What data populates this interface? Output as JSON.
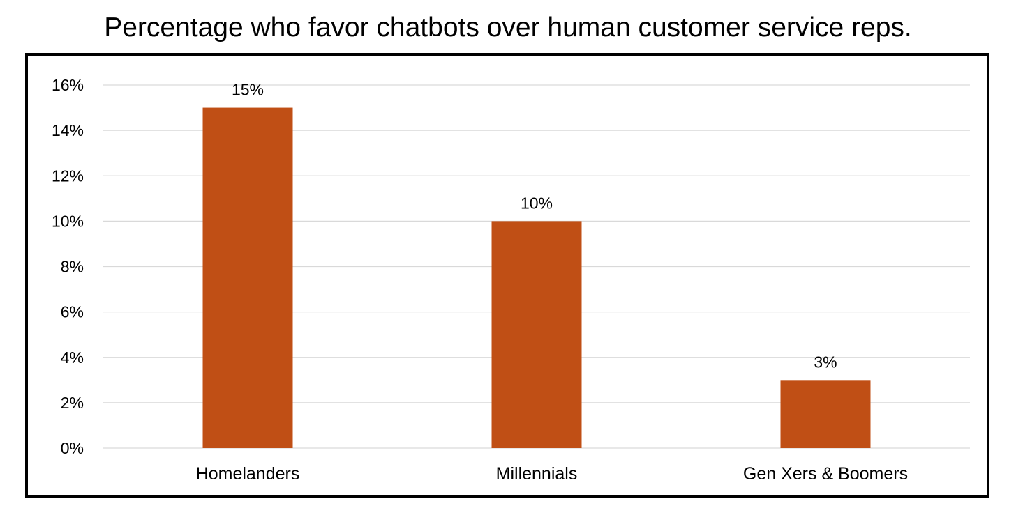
{
  "chart_data": {
    "type": "bar",
    "title": "Percentage who favor chatbots over human customer service reps.",
    "categories": [
      "Homelanders",
      "Millennials",
      "Gen Xers & Boomers"
    ],
    "values": [
      15,
      10,
      3
    ],
    "data_labels": [
      "15%",
      "10%",
      "3%"
    ],
    "ylim": [
      0,
      16
    ],
    "yticks": [
      0,
      2,
      4,
      6,
      8,
      10,
      12,
      14,
      16
    ],
    "ytick_labels": [
      "0%",
      "2%",
      "4%",
      "6%",
      "8%",
      "10%",
      "12%",
      "14%",
      "16%"
    ],
    "xlabel": "",
    "ylabel": "",
    "grid": true,
    "legend": "none",
    "bar_color": "#C04F15",
    "gridline_color": "#D9D9D9"
  }
}
